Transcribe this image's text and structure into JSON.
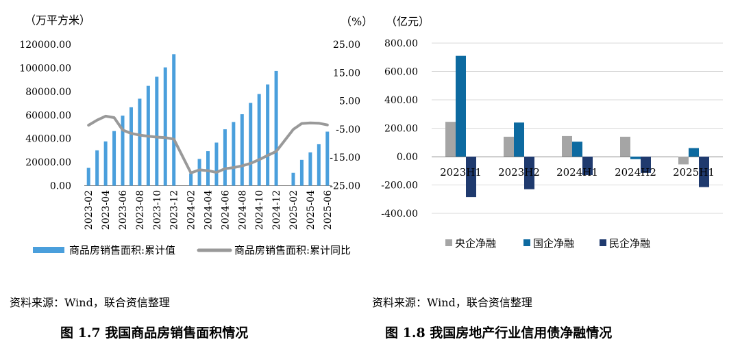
{
  "chart_data": [
    {
      "type": "bar+line",
      "unit_left": "（万平方米）",
      "unit_right": "（%）",
      "categories": [
        "2023-02",
        "2023-03",
        "2023-04",
        "2023-05",
        "2023-06",
        "2023-07",
        "2023-08",
        "2023-09",
        "2023-10",
        "2023-11",
        "2023-12",
        "2024-01",
        "2024-02",
        "2024-03",
        "2024-04",
        "2024-05",
        "2024-06",
        "2024-07",
        "2024-08",
        "2024-09",
        "2024-10",
        "2024-11",
        "2024-12",
        "2025-01",
        "2025-02",
        "2025-03",
        "2025-04",
        "2025-05",
        "2025-06"
      ],
      "x_tick_labels": [
        "2023-02",
        "2023-04",
        "2023-06",
        "2023-08",
        "2023-10",
        "2023-12",
        "2024-02",
        "2024-04",
        "2024-06",
        "2024-08",
        "2024-10",
        "2024-12",
        "2025-02",
        "2025-04",
        "2025-06"
      ],
      "series": [
        {
          "name": "商品房销售面积:累计值",
          "axis": "left",
          "kind": "bar",
          "color": "#4a9fdc",
          "values": [
            15100,
            30000,
            37600,
            46400,
            59500,
            66600,
            73900,
            84800,
            92600,
            100500,
            111700,
            null,
            10400,
            22700,
            29300,
            36600,
            47900,
            54100,
            60700,
            70300,
            77900,
            86000,
            97400,
            null,
            10900,
            21900,
            28300,
            35200,
            45900
          ]
        },
        {
          "name": "商品房销售面积:累计同比",
          "axis": "right",
          "kind": "line",
          "color": "#999999",
          "values": [
            -3.6,
            -1.8,
            -0.4,
            -0.9,
            -5.3,
            -6.5,
            -7.1,
            -7.5,
            -7.8,
            -8.0,
            -8.5,
            null,
            -20.5,
            -19.4,
            -19.7,
            -20.3,
            -19.0,
            -18.6,
            -18.0,
            -17.1,
            -15.8,
            -14.3,
            -12.9,
            null,
            -5.1,
            -3.0,
            -2.8,
            -2.9,
            -3.5
          ]
        }
      ],
      "y_left": {
        "min": 0,
        "max": 120000,
        "step": 20000,
        "ticks": [
          "0.00",
          "20000.00",
          "40000.00",
          "60000.00",
          "80000.00",
          "100000.00",
          "120000.00"
        ]
      },
      "y_right": {
        "min": -25,
        "max": 25,
        "step": 10,
        "ticks": [
          "-25.00",
          "-15.00",
          "-5.00",
          "5.00",
          "15.00",
          "25.00"
        ]
      },
      "source": "资料来源：Wind，联合资信整理",
      "caption": "图 1.7    我国商品房销售面积情况"
    },
    {
      "type": "bar",
      "unit": "（亿元）",
      "categories": [
        "2023H1",
        "2023H2",
        "2024H1",
        "2024H2",
        "2025H1"
      ],
      "series": [
        {
          "name": "央企净融",
          "color": "#a5a5a5",
          "values": [
            245,
            140,
            145,
            140,
            -55
          ]
        },
        {
          "name": "国企净融",
          "color": "#0d6aa0",
          "values": [
            710,
            240,
            105,
            -18,
            60
          ]
        },
        {
          "name": "民企净融",
          "color": "#1f3a6e",
          "values": [
            -285,
            -230,
            -130,
            -115,
            -215
          ]
        }
      ],
      "y": {
        "min": -400,
        "max": 800,
        "step": 200,
        "ticks": [
          "-400.00",
          "-200.00",
          "0.00",
          "200.00",
          "400.00",
          "600.00",
          "800.00"
        ]
      },
      "grid": true,
      "legend": "bottom",
      "source": "资料来源：Wind，联合资信整理",
      "caption": "图 1.8    我国房地产行业信用债净融情况"
    }
  ]
}
